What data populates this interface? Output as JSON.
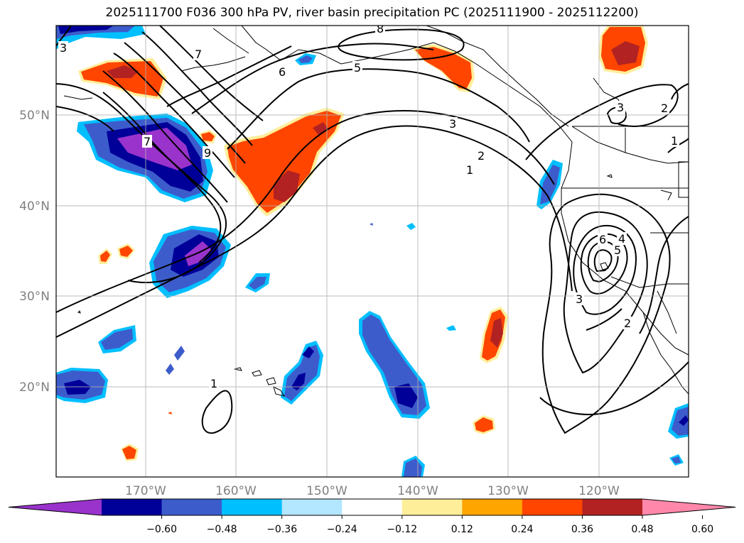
{
  "title": "2025111700 F036 300 hPa PV, river basin precipitation PC (2025111900 - 2025112200)",
  "map": {
    "lat_labels": [
      "50°N",
      "40°N",
      "30°N",
      "20°N"
    ],
    "lon_labels": [
      "170°W",
      "160°W",
      "150°W",
      "140°W",
      "130°W",
      "120°W"
    ]
  },
  "colorbar": {
    "ticks": [
      "−0.60",
      "−0.48",
      "−0.36",
      "−0.24",
      "−0.12",
      "0.12",
      "0.24",
      "0.36",
      "0.48",
      "0.60"
    ],
    "colors": [
      "#9933cc",
      "#000099",
      "#3d5ccc",
      "#00bfff",
      "#b3e6ff",
      "#ffffff",
      "#ffee99",
      "#ffa500",
      "#ff4500",
      "#b22222",
      "#ff88aa"
    ]
  },
  "contour_labels": [
    "3",
    "7",
    "8",
    "6",
    "5",
    "3",
    "2",
    "1",
    "9",
    "7",
    "3",
    "2",
    "1",
    "6",
    "5",
    "4",
    "3",
    "2",
    "1"
  ]
}
